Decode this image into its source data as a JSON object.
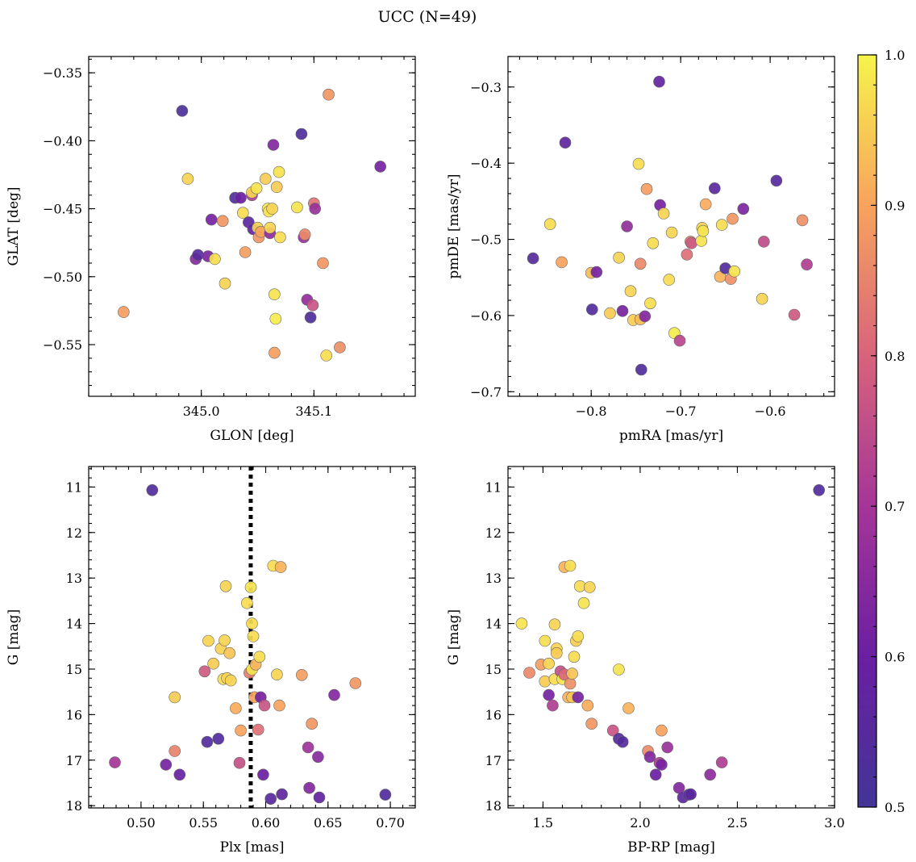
{
  "figure": {
    "title": "UCC (N=49)"
  },
  "colorbar": {
    "range": [
      0.5,
      1.0
    ],
    "ticks": [
      "0.5",
      "0.6",
      "0.7",
      "0.8",
      "0.9",
      "1.0"
    ],
    "colormap": "plasma"
  },
  "chart_data": [
    {
      "type": "scatter",
      "xlabel": "GLON [deg]",
      "ylabel": "GLAT [deg]",
      "xlim": [
        344.9,
        345.19
      ],
      "ylim": [
        -0.588,
        -0.338
      ],
      "xticks": [
        345.0,
        345.1
      ],
      "xtick_labels": [
        "345.0",
        "345.1"
      ],
      "yticks": [
        -0.35,
        -0.4,
        -0.45,
        -0.5,
        -0.55
      ],
      "ytick_labels": [
        "−0.35",
        "−0.40",
        "−0.45",
        "−0.50",
        "−0.55"
      ],
      "points": [
        [
          344.931,
          -0.526,
          0.89
        ],
        [
          344.983,
          -0.378,
          0.52
        ],
        [
          344.988,
          -0.428,
          0.96
        ],
        [
          344.995,
          -0.487,
          0.65
        ],
        [
          344.997,
          -0.484,
          0.55
        ],
        [
          345.006,
          -0.485,
          0.63
        ],
        [
          345.009,
          -0.458,
          0.62
        ],
        [
          345.012,
          -0.487,
          0.97
        ],
        [
          345.019,
          -0.459,
          0.88
        ],
        [
          345.021,
          -0.505,
          0.96
        ],
        [
          345.03,
          -0.442,
          0.54
        ],
        [
          345.035,
          -0.442,
          0.6
        ],
        [
          345.037,
          -0.453,
          0.97
        ],
        [
          345.039,
          -0.482,
          0.89
        ],
        [
          345.042,
          -0.46,
          0.56
        ],
        [
          345.045,
          -0.44,
          0.72
        ],
        [
          345.045,
          -0.438,
          0.96
        ],
        [
          345.046,
          -0.465,
          0.58
        ],
        [
          345.049,
          -0.435,
          0.98
        ],
        [
          345.05,
          -0.464,
          0.96
        ],
        [
          345.051,
          -0.471,
          0.88
        ],
        [
          345.053,
          -0.467,
          0.9
        ],
        [
          345.057,
          -0.428,
          0.95
        ],
        [
          345.059,
          -0.45,
          0.99
        ],
        [
          345.06,
          -0.452,
          0.98
        ],
        [
          345.061,
          -0.468,
          0.66
        ],
        [
          345.061,
          -0.464,
          0.96
        ],
        [
          345.063,
          -0.45,
          0.96
        ],
        [
          345.064,
          -0.403,
          0.64
        ],
        [
          345.065,
          -0.513,
          0.98
        ],
        [
          345.065,
          -0.556,
          0.89
        ],
        [
          345.066,
          -0.531,
          0.99
        ],
        [
          345.067,
          -0.434,
          0.95
        ],
        [
          345.069,
          -0.423,
          0.98
        ],
        [
          345.07,
          -0.471,
          0.97
        ],
        [
          345.085,
          -0.449,
          0.98
        ],
        [
          345.089,
          -0.395,
          0.53
        ],
        [
          345.091,
          -0.471,
          0.68
        ],
        [
          345.092,
          -0.469,
          0.86
        ],
        [
          345.094,
          -0.517,
          0.67
        ],
        [
          345.097,
          -0.53,
          0.53
        ],
        [
          345.099,
          -0.521,
          0.77
        ],
        [
          345.1,
          -0.446,
          0.83
        ],
        [
          345.101,
          -0.45,
          0.68
        ],
        [
          345.108,
          -0.49,
          0.88
        ],
        [
          345.111,
          -0.558,
          0.97
        ],
        [
          345.113,
          -0.366,
          0.88
        ],
        [
          345.123,
          -0.552,
          0.87
        ],
        [
          345.159,
          -0.419,
          0.62
        ]
      ]
    },
    {
      "type": "scatter",
      "xlabel": "pmRA [mas/yr]",
      "ylabel": "pmDE [mas/yr]",
      "xlim": [
        -0.893,
        -0.528
      ],
      "ylim": [
        -0.706,
        -0.26
      ],
      "xticks": [
        -0.8,
        -0.7,
        -0.6
      ],
      "xtick_labels": [
        "−0.8",
        "−0.7",
        "−0.6"
      ],
      "yticks": [
        -0.3,
        -0.4,
        -0.5,
        -0.6,
        -0.7
      ],
      "ytick_labels": [
        "−0.3",
        "−0.4",
        "−0.5",
        "−0.6",
        "−0.7"
      ],
      "points": [
        [
          -0.865,
          -0.525,
          0.55
        ],
        [
          -0.846,
          -0.48,
          0.97
        ],
        [
          -0.833,
          -0.53,
          0.9
        ],
        [
          -0.829,
          -0.373,
          0.57
        ],
        [
          -0.8,
          -0.544,
          0.93
        ],
        [
          -0.799,
          -0.592,
          0.54
        ],
        [
          -0.794,
          -0.543,
          0.62
        ],
        [
          -0.779,
          -0.597,
          0.95
        ],
        [
          -0.769,
          -0.524,
          0.96
        ],
        [
          -0.765,
          -0.594,
          0.62
        ],
        [
          -0.76,
          -0.483,
          0.67
        ],
        [
          -0.756,
          -0.568,
          0.96
        ],
        [
          -0.753,
          -0.606,
          0.95
        ],
        [
          -0.747,
          -0.401,
          0.97
        ],
        [
          -0.745,
          -0.532,
          0.86
        ],
        [
          -0.745,
          -0.605,
          0.93
        ],
        [
          -0.744,
          -0.671,
          0.54
        ],
        [
          -0.74,
          -0.601,
          0.64
        ],
        [
          -0.738,
          -0.434,
          0.89
        ],
        [
          -0.734,
          -0.584,
          0.97
        ],
        [
          -0.731,
          -0.505,
          0.97
        ],
        [
          -0.724,
          -0.293,
          0.58
        ],
        [
          -0.723,
          -0.455,
          0.62
        ],
        [
          -0.719,
          -0.466,
          0.96
        ],
        [
          -0.713,
          -0.553,
          0.97
        ],
        [
          -0.71,
          -0.491,
          0.96
        ],
        [
          -0.707,
          -0.623,
          0.99
        ],
        [
          -0.701,
          -0.633,
          0.74
        ],
        [
          -0.693,
          -0.52,
          0.82
        ],
        [
          -0.689,
          -0.503,
          0.84
        ],
        [
          -0.688,
          -0.505,
          0.78
        ],
        [
          -0.677,
          -0.502,
          0.98
        ],
        [
          -0.676,
          -0.485,
          0.96
        ],
        [
          -0.675,
          -0.489,
          0.98
        ],
        [
          -0.672,
          -0.454,
          0.91
        ],
        [
          -0.662,
          -0.433,
          0.56
        ],
        [
          -0.656,
          -0.549,
          0.92
        ],
        [
          -0.654,
          -0.481,
          0.97
        ],
        [
          -0.65,
          -0.538,
          0.54
        ],
        [
          -0.644,
          -0.552,
          0.87
        ],
        [
          -0.642,
          -0.473,
          0.88
        ],
        [
          -0.64,
          -0.542,
          0.98
        ],
        [
          -0.63,
          -0.46,
          0.63
        ],
        [
          -0.609,
          -0.578,
          0.96
        ],
        [
          -0.607,
          -0.503,
          0.75
        ],
        [
          -0.593,
          -0.423,
          0.55
        ],
        [
          -0.573,
          -0.599,
          0.78
        ],
        [
          -0.564,
          -0.475,
          0.87
        ],
        [
          -0.559,
          -0.533,
          0.72
        ]
      ]
    },
    {
      "type": "scatter",
      "xlabel": "Plx [mas]",
      "ylabel": "G [mag]",
      "xlim": [
        0.458,
        0.72
      ],
      "ylim": [
        18.05,
        10.55
      ],
      "xticks": [
        0.5,
        0.55,
        0.6,
        0.65,
        0.7
      ],
      "xtick_labels": [
        "0.50",
        "0.55",
        "0.60",
        "0.65",
        "0.70"
      ],
      "yticks": [
        11,
        12,
        13,
        14,
        15,
        16,
        17,
        18
      ],
      "ytick_labels": [
        "11",
        "12",
        "13",
        "14",
        "15",
        "16",
        "17",
        "18"
      ],
      "vline": {
        "x": 0.588,
        "style": "dotted",
        "color": "#000000"
      },
      "points": [
        [
          0.479,
          17.05,
          0.7
        ],
        [
          0.509,
          11.07,
          0.54
        ],
        [
          0.52,
          17.1,
          0.62
        ],
        [
          0.527,
          15.62,
          0.95
        ],
        [
          0.527,
          16.8,
          0.85
        ],
        [
          0.531,
          17.32,
          0.59
        ],
        [
          0.551,
          15.05,
          0.78
        ],
        [
          0.553,
          16.6,
          0.54
        ],
        [
          0.554,
          14.38,
          0.96
        ],
        [
          0.558,
          14.88,
          0.95
        ],
        [
          0.562,
          16.53,
          0.54
        ],
        [
          0.564,
          14.55,
          0.96
        ],
        [
          0.566,
          15.22,
          0.97
        ],
        [
          0.567,
          14.37,
          0.96
        ],
        [
          0.568,
          13.18,
          0.96
        ],
        [
          0.569,
          15.2,
          0.96
        ],
        [
          0.571,
          14.65,
          0.94
        ],
        [
          0.572,
          15.25,
          0.96
        ],
        [
          0.576,
          15.86,
          0.91
        ],
        [
          0.579,
          17.06,
          0.76
        ],
        [
          0.58,
          16.35,
          0.9
        ],
        [
          0.585,
          13.55,
          0.97
        ],
        [
          0.587,
          15.08,
          0.84
        ],
        [
          0.588,
          13.2,
          0.98
        ],
        [
          0.589,
          14.0,
          0.97
        ],
        [
          0.589,
          15.01,
          0.98
        ],
        [
          0.59,
          14.28,
          0.97
        ],
        [
          0.591,
          15.62,
          0.9
        ],
        [
          0.592,
          14.9,
          0.92
        ],
        [
          0.594,
          16.33,
          0.82
        ],
        [
          0.595,
          14.73,
          0.97
        ],
        [
          0.596,
          15.62,
          0.62
        ],
        [
          0.598,
          17.32,
          0.6
        ],
        [
          0.599,
          15.8,
          0.77
        ],
        [
          0.606,
          12.73,
          0.97
        ],
        [
          0.609,
          15.12,
          0.96
        ],
        [
          0.611,
          15.8,
          0.9
        ],
        [
          0.612,
          12.76,
          0.92
        ],
        [
          0.613,
          17.75,
          0.57
        ],
        [
          0.629,
          15.13,
          0.89
        ],
        [
          0.634,
          16.72,
          0.69
        ],
        [
          0.635,
          17.61,
          0.64
        ],
        [
          0.637,
          16.2,
          0.88
        ],
        [
          0.642,
          16.93,
          0.65
        ],
        [
          0.643,
          17.82,
          0.58
        ],
        [
          0.655,
          15.57,
          0.64
        ],
        [
          0.672,
          15.31,
          0.88
        ],
        [
          0.696,
          17.76,
          0.54
        ],
        [
          0.604,
          17.85,
          0.56
        ]
      ]
    },
    {
      "type": "scatter",
      "xlabel": "BP-RP [mag]",
      "ylabel": "G [mag]",
      "xlim": [
        1.32,
        3.0
      ],
      "ylim": [
        18.05,
        10.55
      ],
      "xticks": [
        1.5,
        2.0,
        2.5,
        3.0
      ],
      "xtick_labels": [
        "1.5",
        "2.0",
        "2.5",
        "3.0"
      ],
      "yticks": [
        11,
        12,
        13,
        14,
        15,
        16,
        17,
        18
      ],
      "ytick_labels": [
        "11",
        "12",
        "13",
        "14",
        "15",
        "16",
        "17",
        "18"
      ],
      "points": [
        [
          1.39,
          14.0,
          0.98
        ],
        [
          1.43,
          15.08,
          0.86
        ],
        [
          1.49,
          14.9,
          0.89
        ],
        [
          1.51,
          14.38,
          0.97
        ],
        [
          1.51,
          15.27,
          0.95
        ],
        [
          1.53,
          14.88,
          0.96
        ],
        [
          1.53,
          15.57,
          0.62
        ],
        [
          1.55,
          15.8,
          0.72
        ],
        [
          1.56,
          14.02,
          0.96
        ],
        [
          1.56,
          15.22,
          0.97
        ],
        [
          1.57,
          14.55,
          0.96
        ],
        [
          1.57,
          14.65,
          0.95
        ],
        [
          1.59,
          15.05,
          0.76
        ],
        [
          1.6,
          15.22,
          0.98
        ],
        [
          1.61,
          12.76,
          0.92
        ],
        [
          1.61,
          15.12,
          0.81
        ],
        [
          1.63,
          15.62,
          0.92
        ],
        [
          1.64,
          12.73,
          0.97
        ],
        [
          1.64,
          15.32,
          0.87
        ],
        [
          1.65,
          15.1,
          0.94
        ],
        [
          1.65,
          15.62,
          0.94
        ],
        [
          1.66,
          14.73,
          0.97
        ],
        [
          1.67,
          14.38,
          0.95
        ],
        [
          1.68,
          14.28,
          0.97
        ],
        [
          1.68,
          15.62,
          0.62
        ],
        [
          1.69,
          13.18,
          0.97
        ],
        [
          1.71,
          13.55,
          0.98
        ],
        [
          1.73,
          15.8,
          0.91
        ],
        [
          1.74,
          13.2,
          0.96
        ],
        [
          1.75,
          16.2,
          0.88
        ],
        [
          1.86,
          16.35,
          0.77
        ],
        [
          1.89,
          15.01,
          0.98
        ],
        [
          1.89,
          16.53,
          0.55
        ],
        [
          1.91,
          16.6,
          0.54
        ],
        [
          1.94,
          15.86,
          0.92
        ],
        [
          2.04,
          16.8,
          0.86
        ],
        [
          2.05,
          16.93,
          0.64
        ],
        [
          2.08,
          17.32,
          0.6
        ],
        [
          2.1,
          17.06,
          0.72
        ],
        [
          2.11,
          16.35,
          0.9
        ],
        [
          2.11,
          17.1,
          0.62
        ],
        [
          2.14,
          16.72,
          0.68
        ],
        [
          2.2,
          17.61,
          0.64
        ],
        [
          2.22,
          17.82,
          0.56
        ],
        [
          2.25,
          17.76,
          0.55
        ],
        [
          2.26,
          17.75,
          0.56
        ],
        [
          2.36,
          17.32,
          0.66
        ],
        [
          2.42,
          17.05,
          0.72
        ],
        [
          2.92,
          11.07,
          0.54
        ]
      ]
    }
  ]
}
